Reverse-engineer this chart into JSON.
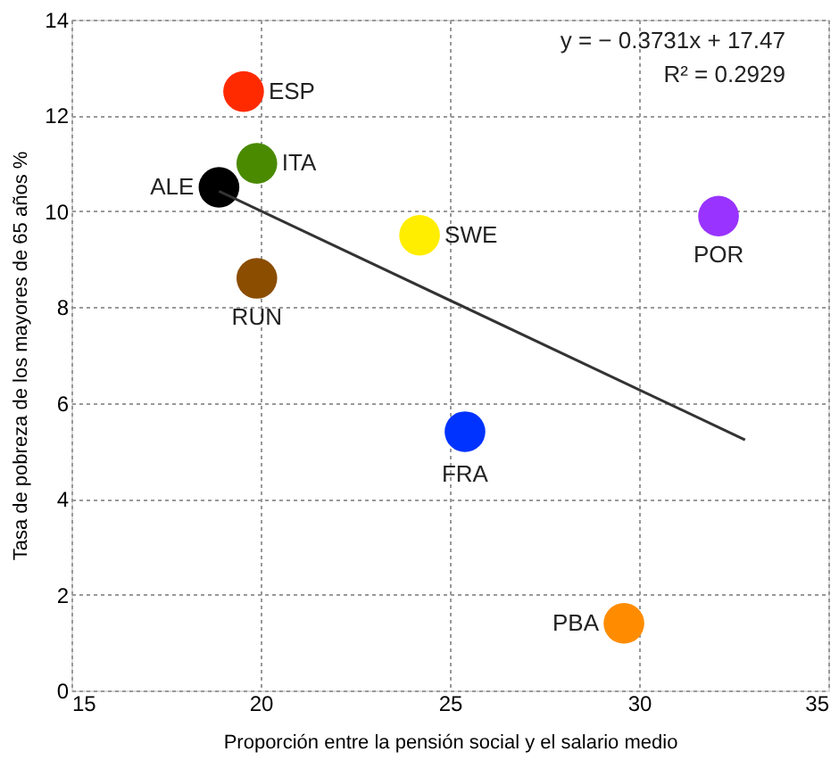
{
  "chart_data": {
    "type": "scatter",
    "xlabel": "Proporción entre la pensión social y el salario medio",
    "ylabel": "Tasa de pobreza de los mayores de 65 años %",
    "xlim": [
      15,
      35
    ],
    "xticks": [
      15,
      20,
      25,
      30,
      35
    ],
    "ylim": [
      0,
      14
    ],
    "yticks": [
      0,
      2,
      4,
      6,
      8,
      10,
      12,
      14
    ],
    "grid": true,
    "marker": "circle",
    "annotations": [
      "y = − 0.3731x + 17.47",
      "R² =  0.2929"
    ],
    "series": [
      {
        "name": "ESP",
        "color": "#ff2a00",
        "x": [
          19.55
        ],
        "values": [
          12.5
        ]
      },
      {
        "name": "ITA",
        "color": "#4a8a00",
        "x": [
          19.9
        ],
        "values": [
          11.0
        ]
      },
      {
        "name": "ALE",
        "color": "#000000",
        "x": [
          18.9
        ],
        "values": [
          10.5
        ]
      },
      {
        "name": "RUN",
        "color": "#8b4d00",
        "x": [
          19.9
        ],
        "values": [
          8.6
        ]
      },
      {
        "name": "SWE",
        "color": "#ffee00",
        "x": [
          24.2
        ],
        "values": [
          9.5
        ]
      },
      {
        "name": "POR",
        "color": "#9933ff",
        "x": [
          32.1
        ],
        "values": [
          9.9
        ]
      },
      {
        "name": "FRA",
        "color": "#0033ff",
        "x": [
          25.4
        ],
        "values": [
          5.4
        ]
      },
      {
        "name": "PBA",
        "color": "#ff8c00",
        "x": [
          29.6
        ],
        "values": [
          1.4
        ]
      },
      {
        "type": "line",
        "marker": "none",
        "color": "#333333",
        "x": [
          18.9,
          32.8
        ],
        "values": [
          10.42,
          5.23
        ]
      }
    ]
  }
}
